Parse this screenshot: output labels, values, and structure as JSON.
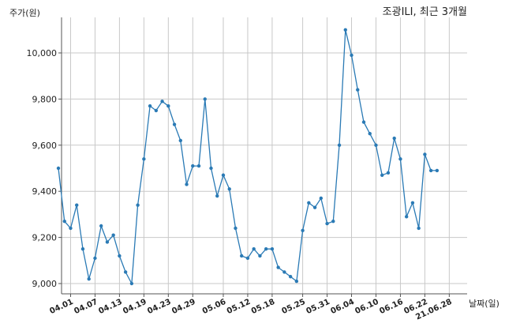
{
  "chart_data": {
    "type": "line",
    "title": "조광ILI, 최근 3개월",
    "ylabel": "주가(원)",
    "xlabel": "날짜(일)",
    "ylim": [
      8950,
      10150
    ],
    "yticks": [
      9000,
      9200,
      9400,
      9600,
      9800,
      10000
    ],
    "ytick_labels": [
      "9,000",
      "9,200",
      "9,400",
      "9,600",
      "9,800",
      "10,000"
    ],
    "xtick_labels": [
      "04.01",
      "04.07",
      "04.13",
      "04.19",
      "04.23",
      "04.29",
      "05.06",
      "05.12",
      "05.18",
      "05.25",
      "05.31",
      "06.04",
      "06.10",
      "06.16",
      "06.22",
      "21.06.28"
    ],
    "xtick_index": [
      2,
      6,
      10,
      14,
      18,
      22,
      27,
      31,
      35,
      40,
      44,
      48,
      52,
      56,
      60,
      64
    ],
    "grid": true,
    "series": [
      {
        "values": [
          9500,
          9270,
          9240,
          9340,
          9150,
          9020,
          9110,
          9250,
          9180,
          9210,
          9120,
          9050,
          9000,
          9340,
          9540,
          9770,
          9750,
          9790,
          9770,
          9690,
          9620,
          9430,
          9510,
          9510,
          9800,
          9500,
          9380,
          9470,
          9410,
          9240,
          9120,
          9110,
          9150,
          9120,
          9150,
          9150,
          9070,
          9050,
          9030,
          9010,
          9230,
          9350,
          9330,
          9370,
          9260,
          9270,
          9600,
          10100,
          9990,
          9840,
          9700,
          9650,
          9600,
          9470,
          9480,
          9630,
          9540,
          9290,
          9350,
          9240,
          9560,
          9490,
          9490
        ],
        "color": "#2a7ab5"
      }
    ]
  }
}
